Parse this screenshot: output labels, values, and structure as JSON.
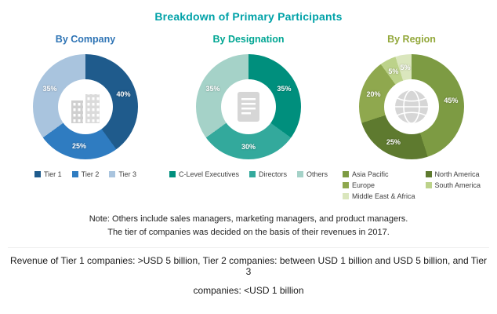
{
  "page": {
    "title": "Breakdown of Primary Participants",
    "title_color": "#00a2a8"
  },
  "chart_data": [
    {
      "type": "pie",
      "donut": true,
      "title": "By Company",
      "title_color": "#2e74b5",
      "center_icon": "building-icon",
      "legend_position": "bottom",
      "legend_columns": 3,
      "segments": [
        {
          "label": "Tier 1",
          "value": 40,
          "color": "#1f5b8c"
        },
        {
          "label": "Tier 2",
          "value": 25,
          "color": "#2f7cc1"
        },
        {
          "label": "Tier 3",
          "value": 35,
          "color": "#a9c4de"
        }
      ]
    },
    {
      "type": "pie",
      "donut": true,
      "title": "By Designation",
      "title_color": "#00a693",
      "center_icon": "document-icon",
      "legend_position": "bottom",
      "legend_columns": 3,
      "segments": [
        {
          "label": "C-Level Executives",
          "value": 35,
          "color": "#008f7d"
        },
        {
          "label": "Directors",
          "value": 30,
          "color": "#33a99c"
        },
        {
          "label": "Others",
          "value": 35,
          "color": "#a5d2c8"
        }
      ]
    },
    {
      "type": "pie",
      "donut": true,
      "title": "By Region",
      "title_color": "#93a83b",
      "center_icon": "globe-icon",
      "legend_position": "bottom",
      "legend_columns": 2,
      "segments": [
        {
          "label": "Asia Pacific",
          "value": 45,
          "color": "#7d9b43"
        },
        {
          "label": "North America",
          "value": 25,
          "color": "#5e7a2f"
        },
        {
          "label": "Europe",
          "value": 20,
          "color": "#8fa84e"
        },
        {
          "label": "South America",
          "value": 5,
          "color": "#bcd28a"
        },
        {
          "label": "Middle East & Africa",
          "value": 5,
          "color": "#dae6bd"
        }
      ]
    }
  ],
  "note": {
    "line1": "Note:  Others include sales managers, marketing managers, and product managers.",
    "line2": "The tier of companies was decided on the basis of their revenues in 2017."
  },
  "footer": {
    "line1": "Revenue of Tier 1 companies: >USD 5 billion, Tier 2 companies: between USD 1 billion and USD 5 billion, and Tier 3",
    "line2": "companies: <USD 1 billion"
  }
}
